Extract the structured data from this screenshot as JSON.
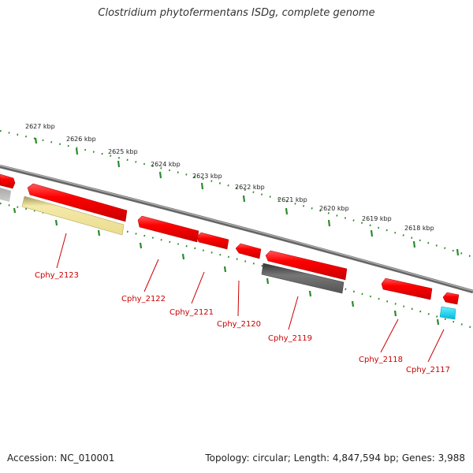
{
  "title": "Clostridium phytofermentans ISDg, complete genome",
  "accession": "Accession: NC_010001",
  "summary": "Topology: circular; Length: 4,847,594 bp; Genes: 3,988",
  "colors": {
    "backbone": "#777777",
    "tick_dots": "#2a8a2a",
    "cds_forward": "#ee0000",
    "gene_label": "#cc0000",
    "trna": "#00ccee",
    "feature_yellow": "#efe3a0",
    "feature_gray": "#666666"
  },
  "kbp_ticks": [
    "2627 kbp",
    "2626 kbp",
    "2625 kbp",
    "2624 kbp",
    "2623 kbp",
    "2622 kbp",
    "2621 kbp",
    "2620 kbp",
    "2619 kbp",
    "2618 kbp"
  ],
  "gene_labels": [
    "Cphy_2123",
    "Cphy_2122",
    "Cphy_2121",
    "Cphy_2120",
    "Cphy_2119",
    "Cphy_2118",
    "Cphy_2117"
  ]
}
